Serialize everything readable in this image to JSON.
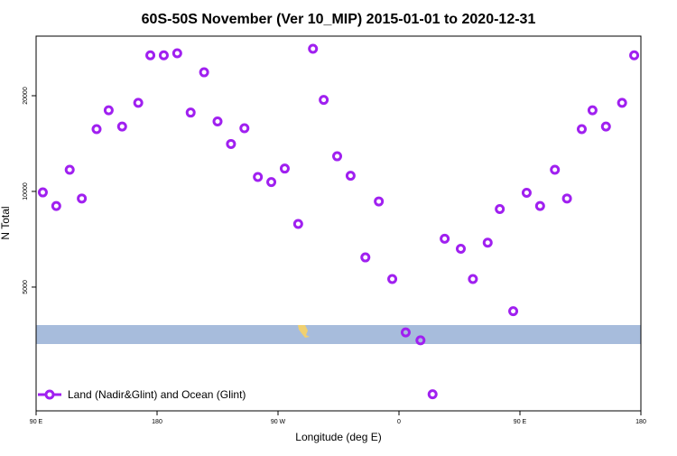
{
  "chart_data": {
    "type": "scatter",
    "title": "60S-50S November (Ver 10_MIP)   2015-01-01 to 2020-12-31",
    "x_label": "Longitude (deg E)",
    "y_label": "N Total",
    "xlim": [
      90,
      540
    ],
    "xticks": [
      {
        "value": 90,
        "label": "90 E"
      },
      180,
      {
        "value": 270,
        "label": "90 W"
      },
      {
        "value": 360,
        "label": "0"
      },
      {
        "value": 450,
        "label": "90 E"
      },
      {
        "value": 540,
        "label": "180"
      }
    ],
    "ylim": [
      2040,
      30800
    ],
    "y_scale": "log",
    "yticks": [
      5000,
      10000,
      20000
    ],
    "legend_position": "lower left",
    "series": [
      {
        "name": "Land (Nadir&Glint) and Ocean (Glint)",
        "color": "#a020f0",
        "x": [
          95,
          105,
          115,
          124,
          135,
          144,
          154,
          166,
          175,
          185,
          195,
          205,
          215,
          225,
          235,
          245,
          255,
          265,
          275,
          285,
          296,
          304,
          314,
          324,
          335,
          345,
          355,
          365,
          376,
          385,
          394,
          406,
          415,
          426,
          435,
          445,
          455,
          465,
          476,
          485,
          496,
          504,
          514,
          526,
          535
        ],
        "values": [
          9930,
          9000,
          11700,
          9500,
          15700,
          18000,
          16000,
          19000,
          26800,
          26800,
          27200,
          17700,
          23700,
          16600,
          14100,
          15800,
          11100,
          10700,
          11800,
          7900,
          28100,
          19400,
          12900,
          11200,
          6200,
          9300,
          5300,
          3600,
          3400,
          2300,
          7100,
          6600,
          5300,
          6900,
          8800,
          4200,
          9900,
          9000,
          11700,
          9500,
          15700,
          18000,
          16000,
          19000,
          26800
        ]
      }
    ]
  }
}
